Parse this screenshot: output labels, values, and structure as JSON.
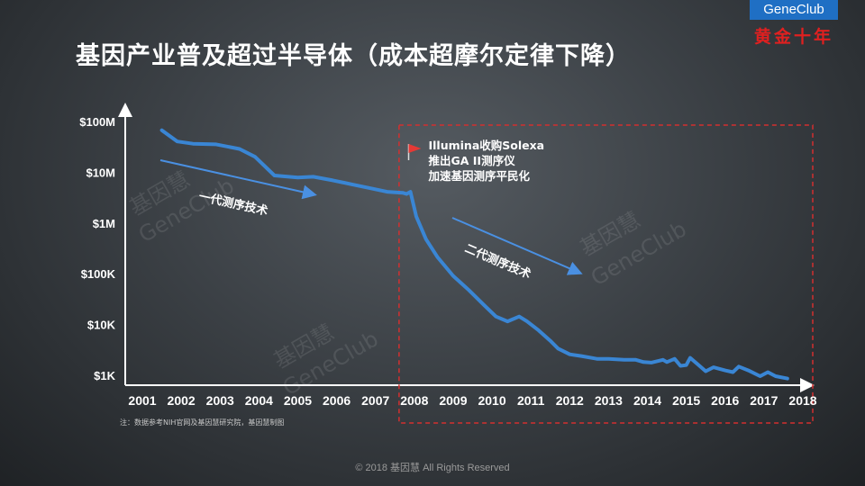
{
  "header": {
    "title": "基因产业普及超过半导体（成本超摩尔定律下降）",
    "brand_name": "GeneClub",
    "brand_tagline": "黄金十年",
    "brand_color": "#1f6fc4",
    "tagline_color": "#e02020"
  },
  "chart_data": {
    "type": "line",
    "title": "",
    "xlabel": "",
    "ylabel": "",
    "y_scale": "log",
    "x_ticks": [
      "2001",
      "2002",
      "2003",
      "2004",
      "2005",
      "2006",
      "2007",
      "2008",
      "2009",
      "2010",
      "2011",
      "2012",
      "2013",
      "2014",
      "2015",
      "2016",
      "2017",
      "2018"
    ],
    "y_ticks": [
      {
        "label": "$100M",
        "value": 100000000
      },
      {
        "label": "$10M",
        "value": 10000000
      },
      {
        "label": "$1M",
        "value": 1000000
      },
      {
        "label": "$100K",
        "value": 100000
      },
      {
        "label": "$10K",
        "value": 10000
      },
      {
        "label": "$1K",
        "value": 1000
      }
    ],
    "xlim": [
      2001,
      2018
    ],
    "ylim": [
      1000,
      150000000
    ],
    "grid": false,
    "line_color": "#3a86d4",
    "series": [
      {
        "name": "",
        "x": [
          2001.5,
          2001.9,
          2002.3,
          2002.9,
          2003.5,
          2003.9,
          2004.4,
          2005.0,
          2005.4,
          2005.9,
          2006.4,
          2006.9,
          2007.3,
          2007.7,
          2007.8,
          2007.9,
          2008.05,
          2008.3,
          2008.6,
          2009.0,
          2009.4,
          2009.8,
          2010.1,
          2010.4,
          2010.7,
          2010.9,
          2011.2,
          2011.5,
          2011.7,
          2012.0,
          2012.3,
          2012.7,
          2013.0,
          2013.4,
          2013.7,
          2013.9,
          2014.1,
          2014.4,
          2014.5,
          2014.7,
          2014.85,
          2015.0,
          2015.1,
          2015.3,
          2015.5,
          2015.7,
          2016.0,
          2016.2,
          2016.35,
          2016.6,
          2016.9,
          2017.1,
          2017.3,
          2017.6
        ],
        "y": [
          70000000,
          42000000,
          38000000,
          37000000,
          30000000,
          21000000,
          9000000,
          8200000,
          8500000,
          7200000,
          6000000,
          5000000,
          4300000,
          4100000,
          3900000,
          4300000,
          1400000,
          500000,
          220000,
          95000,
          50000,
          25000,
          15000,
          12000,
          15000,
          12000,
          8000,
          5000,
          3500,
          2700,
          2500,
          2200,
          2200,
          2100,
          2100,
          1900,
          1850,
          2100,
          1900,
          2200,
          1600,
          1650,
          2300,
          1700,
          1250,
          1500,
          1300,
          1200,
          1550,
          1300,
          1000,
          1200,
          1000,
          900
        ]
      }
    ],
    "annotations": [
      {
        "year": 2007.9,
        "lines": [
          "Illumina收购Solexa",
          "推出GA II测序仪",
          "加速基因测序平民化"
        ],
        "color": "#e53935"
      }
    ],
    "eras": [
      {
        "label": "一代测序技术",
        "from": 2001.5,
        "to": 2006.8
      },
      {
        "label": "二代测序技术",
        "from": 2009.2,
        "to": 2011.7
      }
    ],
    "highlight_region": {
      "from": 2007.7,
      "to": 2018,
      "style": "dashed",
      "color": "#d32f2f"
    }
  },
  "watermarks": [
    "基因慧",
    "GeneClub"
  ],
  "note": "注：数据参考NIH官网及基因慧研究院，基因慧制图",
  "footer": "© 2018 基因慧 All Rights Reserved"
}
